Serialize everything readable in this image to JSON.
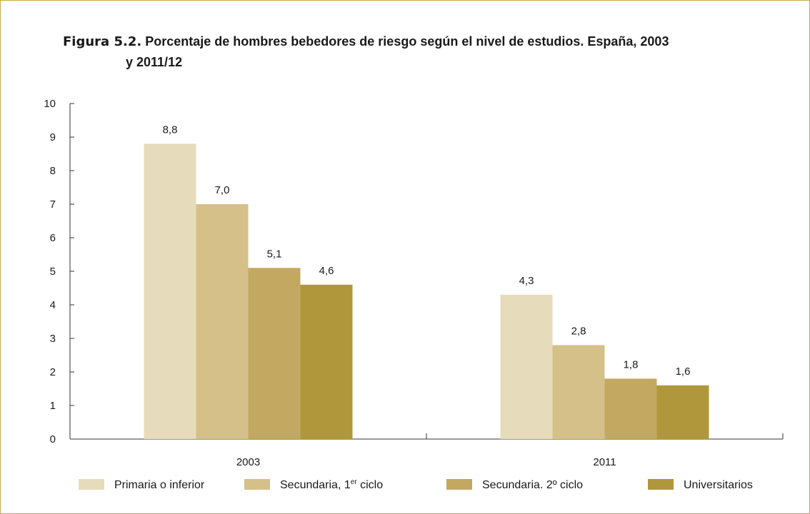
{
  "title": {
    "figure": "Figura 5.2.",
    "text_line1": "Porcentaje de hombres bebedores de riesgo según el nivel de estudios. España, 2003",
    "text_line2": "y 2011/12"
  },
  "colors": {
    "frame": "#c9a84a",
    "axis": "#333333",
    "series": [
      "#e6dbbb",
      "#d5c08a",
      "#c3a862",
      "#b1973b"
    ]
  },
  "chart_data": {
    "type": "bar",
    "categories": [
      "2003",
      "2011"
    ],
    "series": [
      {
        "name": "Primaria o inferior",
        "values": [
          8.8,
          4.3
        ],
        "labels": [
          "8,8",
          "4,3"
        ]
      },
      {
        "name": "Secundaria, 1er ciclo",
        "values": [
          7.0,
          2.8
        ],
        "labels": [
          "7,0",
          "2,8"
        ]
      },
      {
        "name": "Secundaria. 2º ciclo",
        "values": [
          5.1,
          1.8
        ],
        "labels": [
          "5,1",
          "1,8"
        ]
      },
      {
        "name": "Universitarios",
        "values": [
          4.6,
          1.6
        ],
        "labels": [
          "4,6",
          "1,6"
        ]
      }
    ],
    "ylim": [
      0,
      10
    ],
    "yticks": [
      "0",
      "1",
      "2",
      "3",
      "4",
      "5",
      "6",
      "7",
      "8",
      "9",
      "10"
    ],
    "grid": false,
    "legend_position": "bottom"
  }
}
